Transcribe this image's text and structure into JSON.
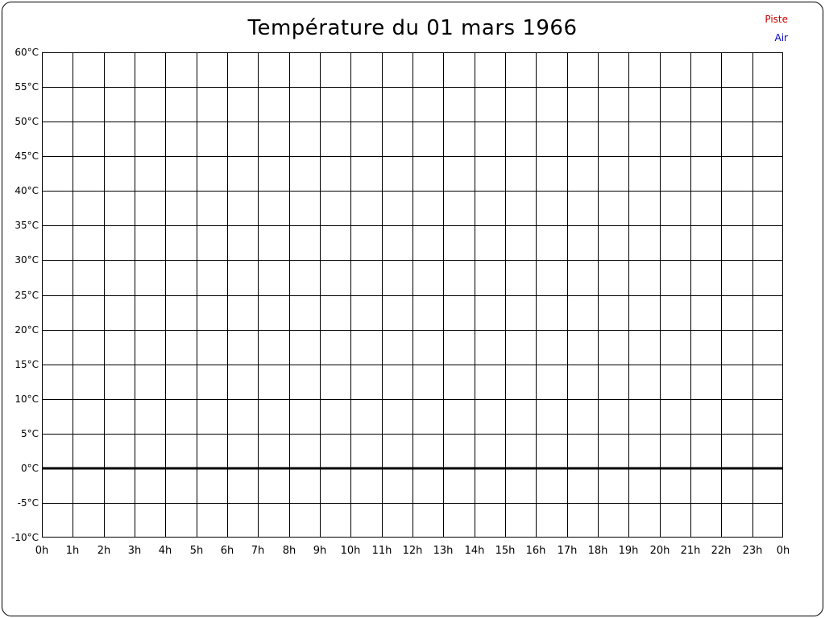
{
  "page": {
    "title": "Température du 01 mars 1966"
  },
  "legend": {
    "items": [
      {
        "label": "Piste",
        "color": "#cc0000"
      },
      {
        "label": "Air",
        "color": "#0000cc"
      }
    ]
  },
  "chart_data": {
    "type": "line",
    "title": "Température du 01 mars 1966",
    "xlabel": "",
    "ylabel": "",
    "x_tick_labels": [
      "0h",
      "1h",
      "2h",
      "3h",
      "4h",
      "5h",
      "6h",
      "7h",
      "8h",
      "9h",
      "10h",
      "11h",
      "12h",
      "13h",
      "14h",
      "15h",
      "16h",
      "17h",
      "18h",
      "19h",
      "20h",
      "21h",
      "22h",
      "23h",
      "0h"
    ],
    "y_tick_labels": [
      "60°C",
      "55°C",
      "50°C",
      "45°C",
      "40°C",
      "35°C",
      "30°C",
      "25°C",
      "20°C",
      "15°C",
      "10°C",
      "5°C",
      "0°C",
      "-5°C",
      "-10°C"
    ],
    "ylim": [
      -10,
      60
    ],
    "y_step": 5,
    "grid": true,
    "grid_color": "#000000",
    "zero_line_value": 0,
    "zero_line_width": 3,
    "legend_position": "top-right",
    "series": [
      {
        "name": "Piste",
        "color": "#cc0000",
        "values": []
      },
      {
        "name": "Air",
        "color": "#0000cc",
        "values": []
      }
    ]
  }
}
